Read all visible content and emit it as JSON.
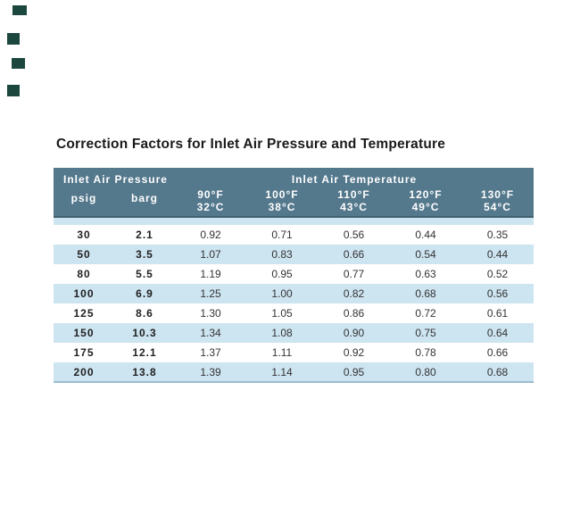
{
  "page": {
    "title": "Correction Factors for Inlet Air Pressure and Temperature"
  },
  "theme": {
    "header_bg": "#54788C",
    "header_text": "#FFFFFF",
    "header_underline": "#41606F",
    "row_alt_bg": "#CDE4F1",
    "row_bg": "#FFFFFF",
    "table_bottom_border": "#9DBCCE",
    "title_color": "#1A1A1A",
    "cell_text": "#333333",
    "bold_cell_text": "#1F1F1F",
    "decor_square": "#1C473F"
  },
  "table": {
    "group_headers": [
      {
        "label": "Inlet Air Pressure"
      },
      {
        "label": "Inlet Air Temperature"
      }
    ],
    "pressure_columns": [
      "psig",
      "barg"
    ],
    "temperature_columns": [
      {
        "fahrenheit": "90°F",
        "celsius": "32°C"
      },
      {
        "fahrenheit": "100°F",
        "celsius": "38°C"
      },
      {
        "fahrenheit": "110°F",
        "celsius": "43°C"
      },
      {
        "fahrenheit": "120°F",
        "celsius": "49°C"
      },
      {
        "fahrenheit": "130°F",
        "celsius": "54°C"
      }
    ],
    "rows": [
      {
        "psig": "30",
        "barg": "2.1",
        "factors": [
          "0.92",
          "0.71",
          "0.56",
          "0.44",
          "0.35"
        ]
      },
      {
        "psig": "50",
        "barg": "3.5",
        "factors": [
          "1.07",
          "0.83",
          "0.66",
          "0.54",
          "0.44"
        ]
      },
      {
        "psig": "80",
        "barg": "5.5",
        "factors": [
          "1.19",
          "0.95",
          "0.77",
          "0.63",
          "0.52"
        ]
      },
      {
        "psig": "100",
        "barg": "6.9",
        "factors": [
          "1.25",
          "1.00",
          "0.82",
          "0.68",
          "0.56"
        ]
      },
      {
        "psig": "125",
        "barg": "8.6",
        "factors": [
          "1.30",
          "1.05",
          "0.86",
          "0.72",
          "0.61"
        ]
      },
      {
        "psig": "150",
        "barg": "10.3",
        "factors": [
          "1.34",
          "1.08",
          "0.90",
          "0.75",
          "0.64"
        ]
      },
      {
        "psig": "175",
        "barg": "12.1",
        "factors": [
          "1.37",
          "1.11",
          "0.92",
          "0.78",
          "0.66"
        ]
      },
      {
        "psig": "200",
        "barg": "13.8",
        "factors": [
          "1.39",
          "1.14",
          "0.95",
          "0.80",
          "0.68"
        ]
      }
    ]
  }
}
